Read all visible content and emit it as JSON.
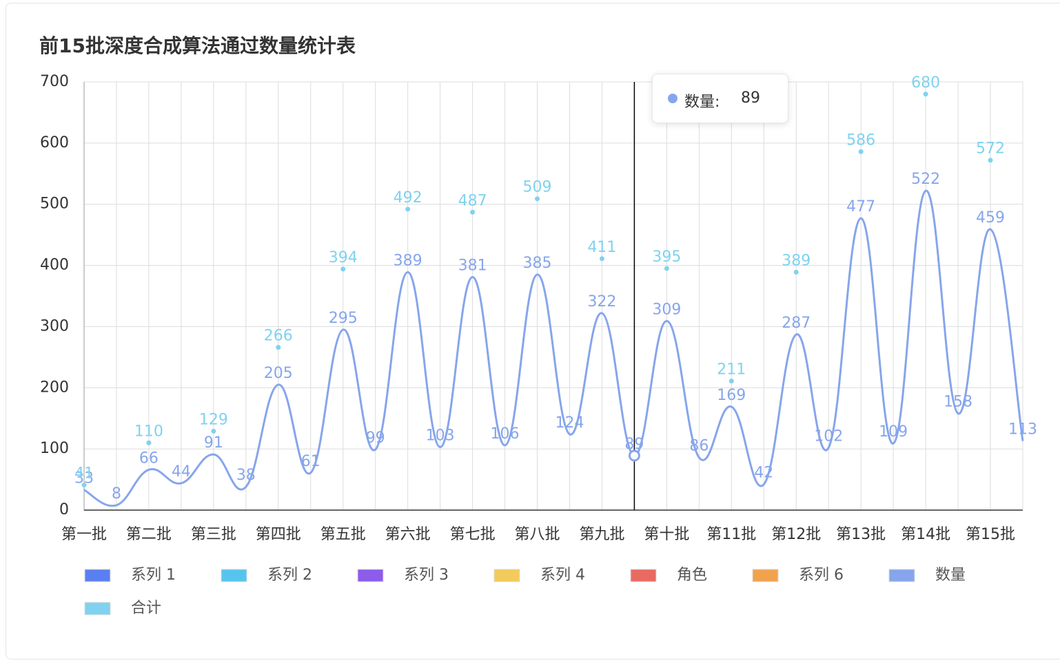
{
  "chart_data": {
    "type": "line",
    "title": "前15批深度合成算法通过数量统计表",
    "categories": [
      "第一批",
      null,
      "第二批",
      null,
      "第三批",
      null,
      "第四批",
      null,
      "第五批",
      null,
      "第六批",
      null,
      "第七批",
      null,
      "第八批",
      null,
      "第九批",
      null,
      "第十批",
      null,
      "第11批",
      null,
      "第12批",
      null,
      "第13批",
      null,
      "第14批",
      null,
      "第15批",
      null
    ],
    "series": [
      {
        "name": "系列 1",
        "color": "#5b7ff2",
        "values": [
          null,
          null,
          null,
          null,
          null,
          null,
          null,
          null,
          null,
          null,
          null,
          null,
          null,
          null,
          null,
          null,
          null,
          null,
          null,
          null,
          null,
          null,
          null,
          null,
          null,
          null,
          null,
          null,
          null,
          null
        ]
      },
      {
        "name": "系列 2",
        "color": "#57c4f0",
        "values": [
          null,
          null,
          null,
          null,
          null,
          null,
          null,
          null,
          null,
          null,
          null,
          null,
          null,
          null,
          null,
          null,
          null,
          null,
          null,
          null,
          null,
          null,
          null,
          null,
          null,
          null,
          null,
          null,
          null,
          null
        ]
      },
      {
        "name": "系列 3",
        "color": "#8c5cec",
        "values": [
          null,
          null,
          null,
          null,
          null,
          null,
          null,
          null,
          null,
          null,
          null,
          null,
          null,
          null,
          null,
          null,
          null,
          null,
          null,
          null,
          null,
          null,
          null,
          null,
          null,
          null,
          null,
          null,
          null,
          null
        ]
      },
      {
        "name": "系列 4",
        "color": "#f2cb5c",
        "values": [
          null,
          null,
          null,
          null,
          null,
          null,
          null,
          null,
          null,
          null,
          null,
          null,
          null,
          null,
          null,
          null,
          null,
          null,
          null,
          null,
          null,
          null,
          null,
          null,
          null,
          null,
          null,
          null,
          null,
          null
        ]
      },
      {
        "name": "角色",
        "color": "#e96a62",
        "values": [
          null,
          null,
          null,
          null,
          null,
          null,
          null,
          null,
          null,
          null,
          null,
          null,
          null,
          null,
          null,
          null,
          null,
          null,
          null,
          null,
          null,
          null,
          null,
          null,
          null,
          null,
          null,
          null,
          null,
          null
        ]
      },
      {
        "name": "系列 6",
        "color": "#f2a24c",
        "values": [
          null,
          null,
          null,
          null,
          null,
          null,
          null,
          null,
          null,
          null,
          null,
          null,
          null,
          null,
          null,
          null,
          null,
          null,
          null,
          null,
          null,
          null,
          null,
          null,
          null,
          null,
          null,
          null,
          null,
          null
        ]
      },
      {
        "name": "数量",
        "color": "#86a5ec",
        "values": [
          33,
          8,
          66,
          44,
          91,
          38,
          205,
          61,
          295,
          99,
          389,
          103,
          381,
          106,
          385,
          124,
          322,
          89,
          309,
          86,
          169,
          42,
          287,
          102,
          477,
          109,
          522,
          158,
          459,
          113
        ]
      },
      {
        "name": "合计",
        "color": "#7fd2f0",
        "symbol_only": true,
        "values": [
          41,
          null,
          110,
          null,
          129,
          null,
          266,
          null,
          394,
          null,
          492,
          null,
          487,
          null,
          509,
          null,
          411,
          null,
          395,
          null,
          211,
          null,
          389,
          null,
          586,
          null,
          680,
          null,
          572,
          null
        ]
      }
    ],
    "ylim": [
      0,
      700
    ],
    "yticks": [
      0,
      100,
      200,
      300,
      400,
      500,
      600,
      700
    ],
    "grid": true,
    "smooth": true,
    "legend": "bottom",
    "tooltip": {
      "series": 6,
      "index": 17,
      "label": "数量:"
    }
  }
}
